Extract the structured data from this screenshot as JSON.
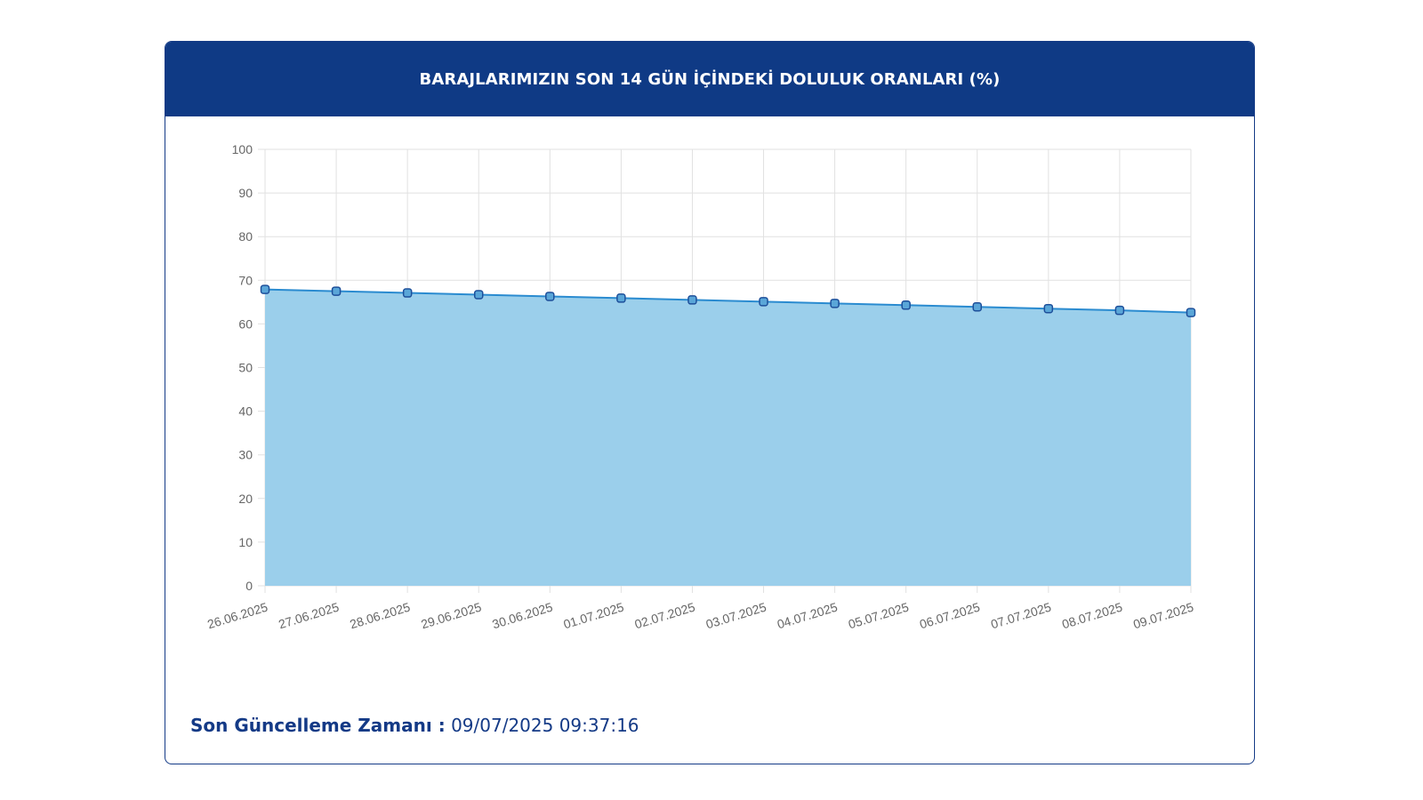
{
  "header": {
    "title": "BARAJLARIMIZIN SON 14 GÜN İÇİNDEKİ DOLULUK ORANLARI (%)"
  },
  "footer": {
    "label": "Son Güncelleme Zamanı :",
    "value": "09/07/2025 09:37:16"
  },
  "colors": {
    "header_bg": "#0f3a85",
    "line": "#2a8bd0",
    "fill": "#9bcfeb",
    "point_fill": "#5aa6d8",
    "point_stroke": "#1d4f9a",
    "grid": "#e1e1e1",
    "tick_text": "#666666"
  },
  "chart_data": {
    "type": "area",
    "x": [
      "26.06.2025",
      "27.06.2025",
      "28.06.2025",
      "29.06.2025",
      "30.06.2025",
      "01.07.2025",
      "02.07.2025",
      "03.07.2025",
      "04.07.2025",
      "05.07.2025",
      "06.07.2025",
      "07.07.2025",
      "08.07.2025",
      "09.07.2025"
    ],
    "series": [
      {
        "values": [
          67.9,
          67.5,
          67.1,
          66.7,
          66.3,
          65.9,
          65.5,
          65.1,
          64.7,
          64.3,
          63.9,
          63.5,
          63.1,
          62.6
        ]
      }
    ],
    "ylim": [
      0,
      100
    ],
    "yticks": [
      0,
      10,
      20,
      30,
      40,
      50,
      60,
      70,
      80,
      90,
      100
    ],
    "grid": true,
    "legend": "none"
  }
}
